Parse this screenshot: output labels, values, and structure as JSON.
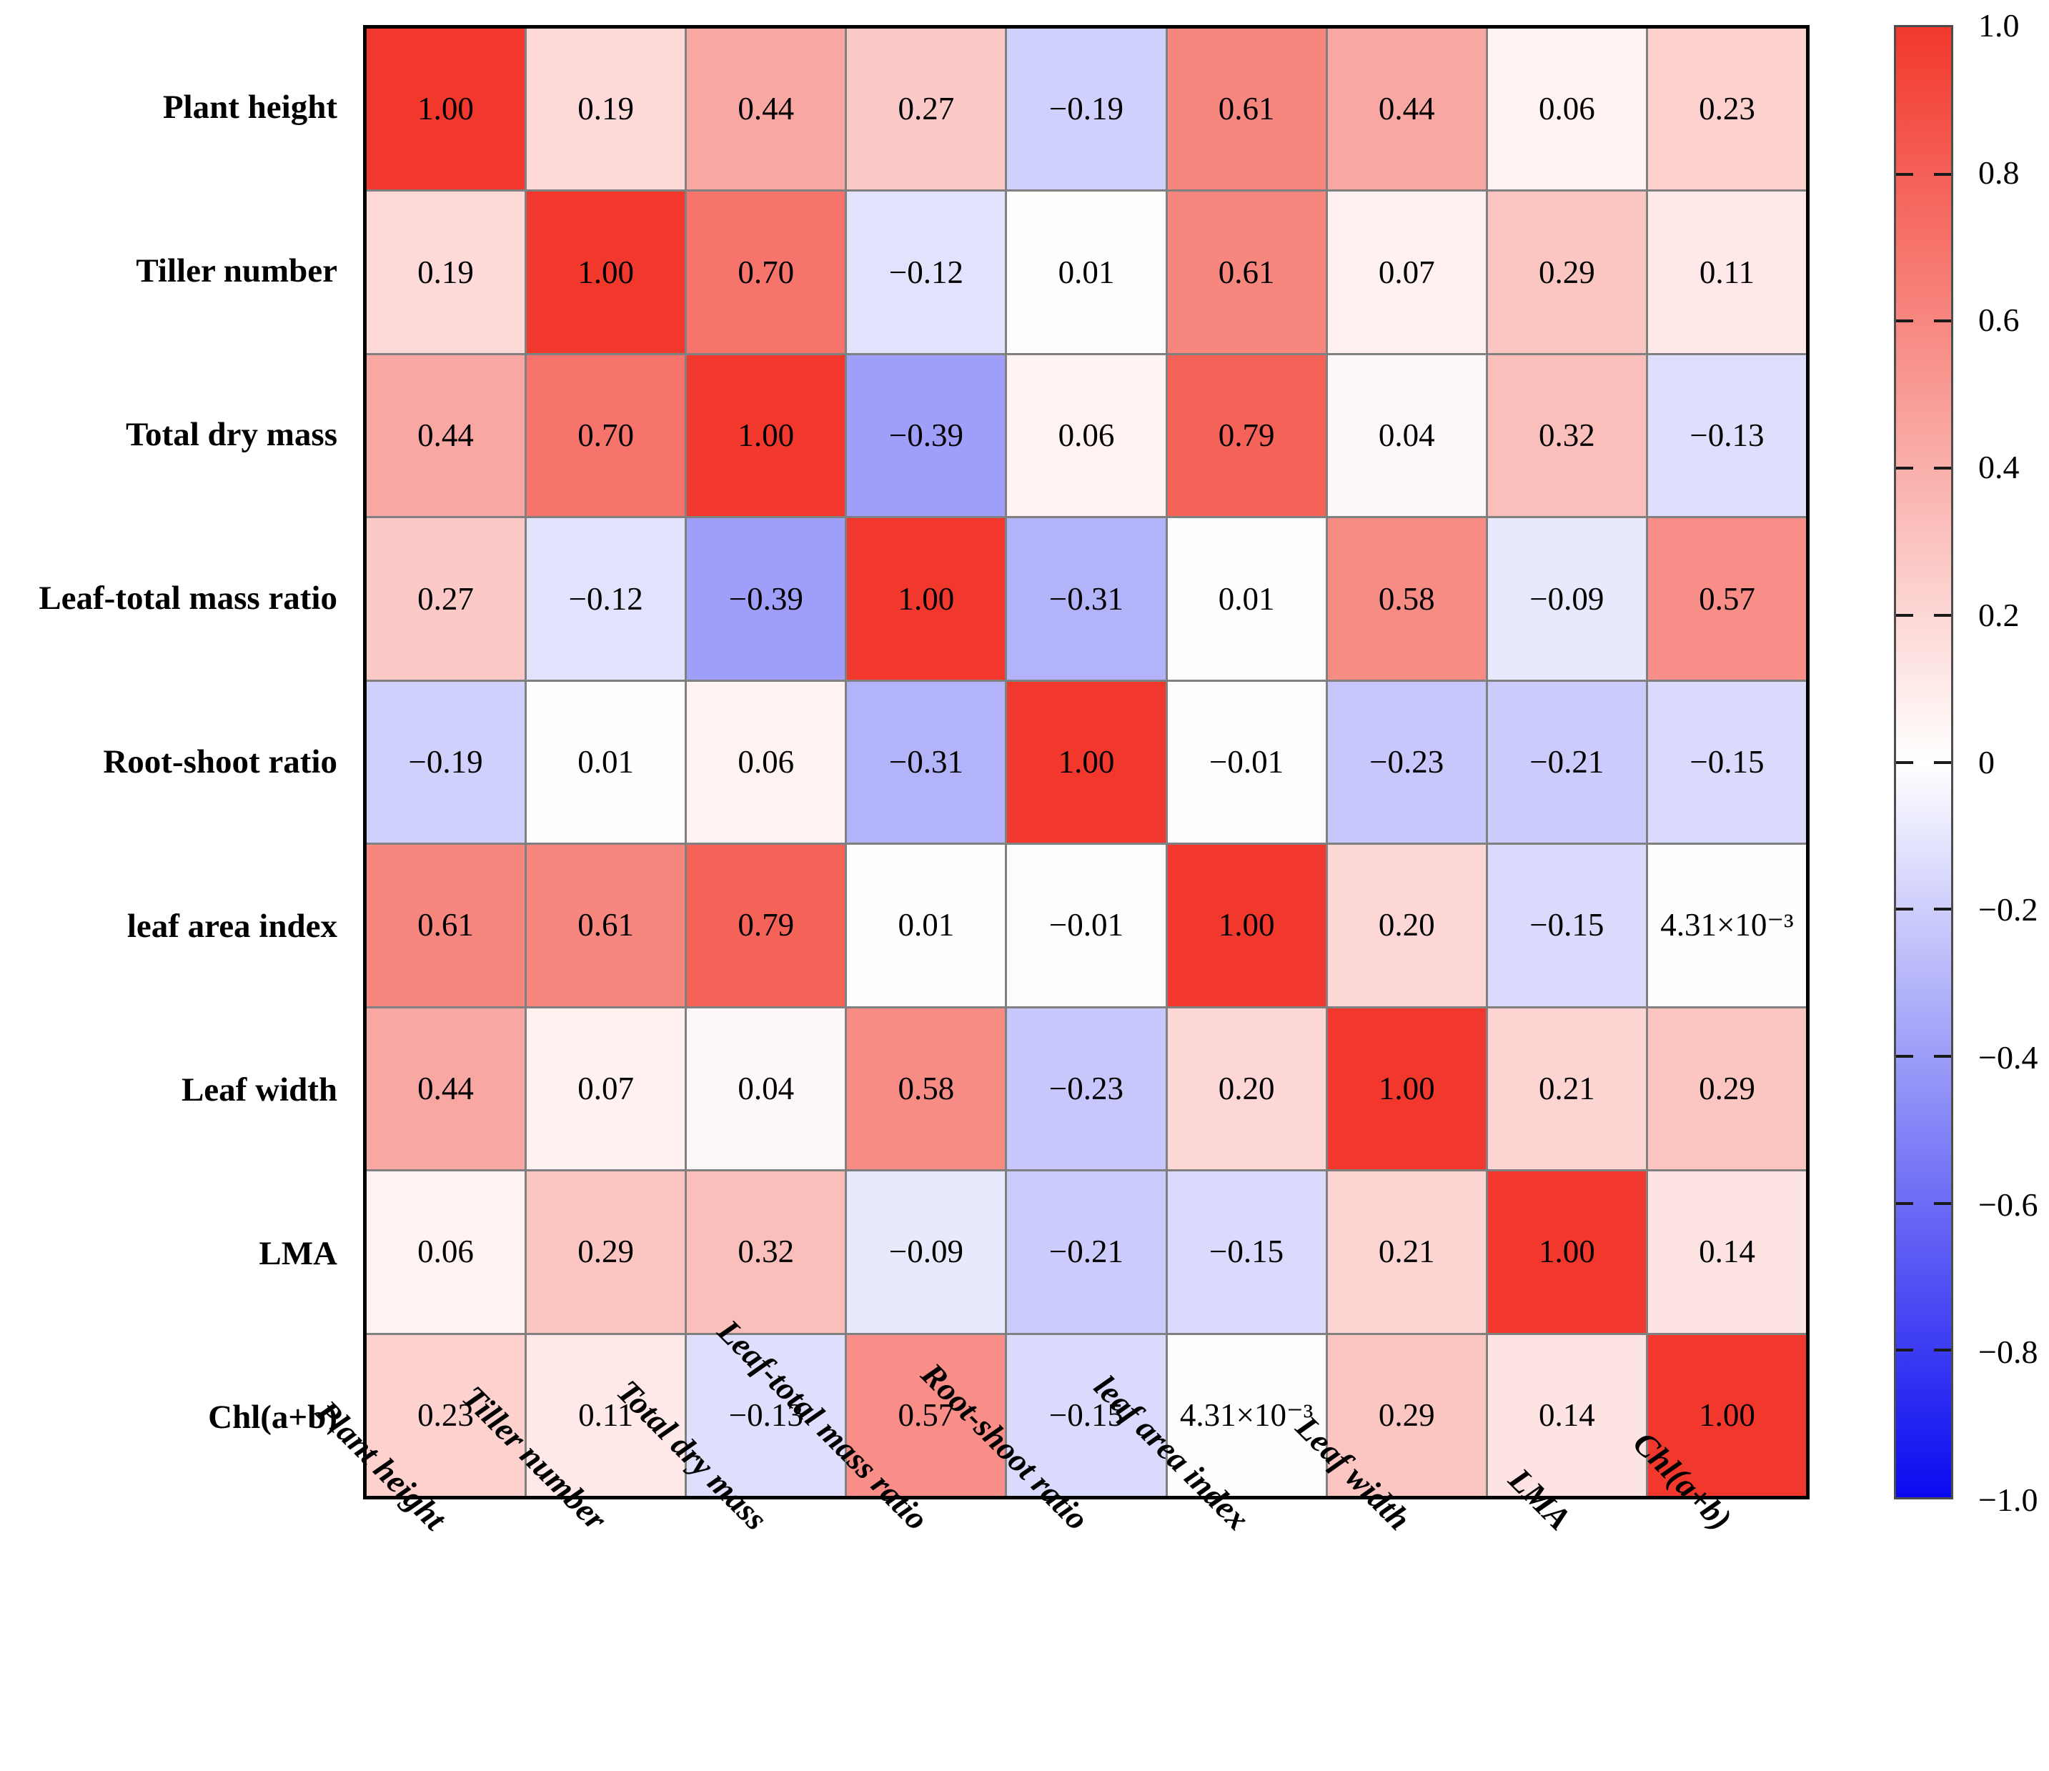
{
  "figure": {
    "background": "#ffffff",
    "grid_line_color": "#808080",
    "border_color": "#000000"
  },
  "chart_data": {
    "type": "heatmap",
    "title": "",
    "variables": [
      "Plant height",
      "Tiller number",
      "Total dry mass",
      "Leaf-total mass ratio",
      "Root-shoot ratio",
      "leaf area index",
      "Leaf width",
      "LMA",
      "Chl(a+b)"
    ],
    "matrix": [
      [
        1.0,
        0.19,
        0.44,
        0.27,
        -0.19,
        0.61,
        0.44,
        0.06,
        0.23
      ],
      [
        0.19,
        1.0,
        0.7,
        -0.12,
        0.01,
        0.61,
        0.07,
        0.29,
        0.11
      ],
      [
        0.44,
        0.7,
        1.0,
        -0.39,
        0.06,
        0.79,
        0.04,
        0.32,
        -0.13
      ],
      [
        0.27,
        -0.12,
        -0.39,
        1.0,
        -0.31,
        0.01,
        0.58,
        -0.09,
        0.57
      ],
      [
        -0.19,
        0.01,
        0.06,
        -0.31,
        1.0,
        -0.01,
        -0.23,
        -0.21,
        -0.15
      ],
      [
        0.61,
        0.61,
        0.79,
        0.01,
        -0.01,
        1.0,
        0.2,
        -0.15,
        0.00431
      ],
      [
        0.44,
        0.07,
        0.04,
        0.58,
        -0.23,
        0.2,
        1.0,
        0.21,
        0.29
      ],
      [
        0.06,
        0.29,
        0.32,
        -0.09,
        -0.21,
        -0.15,
        0.21,
        1.0,
        0.14
      ],
      [
        0.23,
        0.11,
        -0.13,
        0.57,
        -0.15,
        0.00431,
        0.29,
        0.14,
        1.0
      ]
    ],
    "cell_labels": [
      [
        "1.00",
        "0.19",
        "0.44",
        "0.27",
        "−0.19",
        "0.61",
        "0.44",
        "0.06",
        "0.23"
      ],
      [
        "0.19",
        "1.00",
        "0.70",
        "−0.12",
        "0.01",
        "0.61",
        "0.07",
        "0.29",
        "0.11"
      ],
      [
        "0.44",
        "0.70",
        "1.00",
        "−0.39",
        "0.06",
        "0.79",
        "0.04",
        "0.32",
        "−0.13"
      ],
      [
        "0.27",
        "−0.12",
        "−0.39",
        "1.00",
        "−0.31",
        "0.01",
        "0.58",
        "−0.09",
        "0.57"
      ],
      [
        "−0.19",
        "0.01",
        "0.06",
        "−0.31",
        "1.00",
        "−0.01",
        "−0.23",
        "−0.21",
        "−0.15"
      ],
      [
        "0.61",
        "0.61",
        "0.79",
        "0.01",
        "−0.01",
        "1.00",
        "0.20",
        "−0.15",
        "4.31×10⁻³"
      ],
      [
        "0.44",
        "0.07",
        "0.04",
        "0.58",
        "−0.23",
        "0.20",
        "1.00",
        "0.21",
        "0.29"
      ],
      [
        "0.06",
        "0.29",
        "0.32",
        "−0.09",
        "−0.21",
        "−0.15",
        "0.21",
        "1.00",
        "0.14"
      ],
      [
        "0.23",
        "0.11",
        "−0.13",
        "0.57",
        "−0.15",
        "4.31×10⁻³",
        "0.29",
        "0.14",
        "1.00"
      ]
    ],
    "colorbar": {
      "min": -1.0,
      "max": 1.0,
      "tick_labels": [
        "1.0",
        "0.8",
        "0.6",
        "0.4",
        "0.2",
        "0",
        "−0.2",
        "−0.4",
        "−0.6",
        "−0.8",
        "−1.0"
      ],
      "tick_values": [
        1.0,
        0.8,
        0.6,
        0.4,
        0.2,
        0.0,
        -0.2,
        -0.4,
        -0.6,
        -0.8,
        -1.0
      ],
      "position": "right"
    },
    "colors": {
      "positive_end": "#f2382c",
      "zero": "#ffffff",
      "negative_end": "#0a0af0"
    },
    "grid": true,
    "legend_position": "right-colorbar"
  }
}
